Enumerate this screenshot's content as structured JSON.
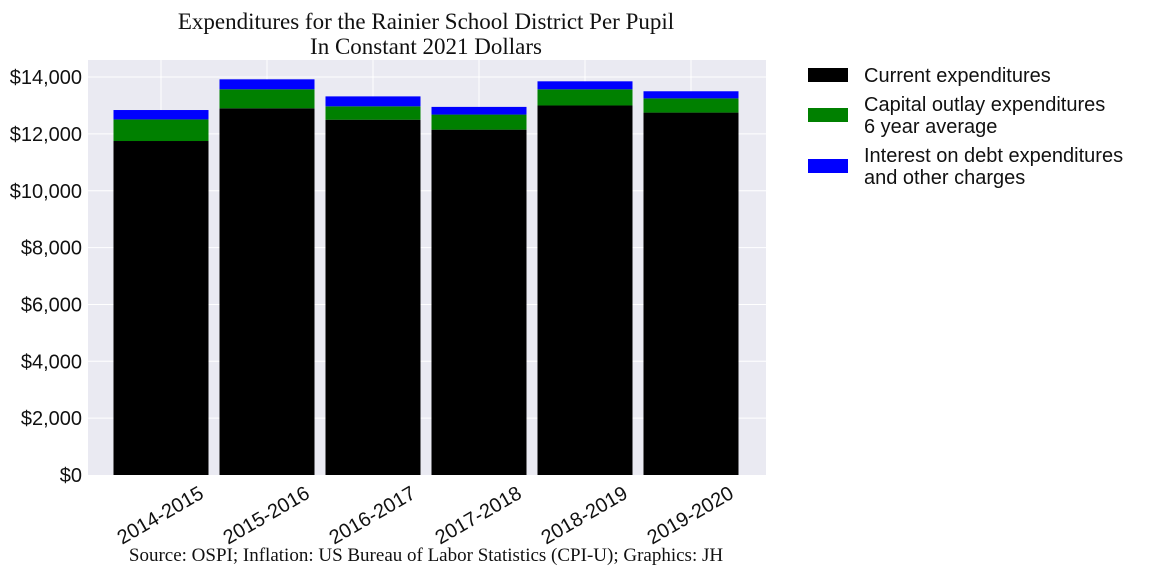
{
  "chart_data": {
    "type": "bar",
    "stacked": true,
    "title_line1": "Expenditures for the Rainier School District Per Pupil",
    "title_line2": "In Constant 2021 Dollars",
    "categories": [
      "2014-2015",
      "2015-2016",
      "2016-2017",
      "2017-2018",
      "2018-2019",
      "2019-2020"
    ],
    "series": [
      {
        "name": "Current expenditures",
        "color": "#000000",
        "values": [
          11750,
          12900,
          12500,
          12150,
          13000,
          12750
        ]
      },
      {
        "name": "Capital outlay expenditures\n6 year average",
        "color": "#008000",
        "values": [
          760,
          670,
          470,
          530,
          570,
          500
        ]
      },
      {
        "name": "Interest on debt expenditures\nand other charges",
        "color": "#0000ff",
        "values": [
          330,
          350,
          350,
          270,
          280,
          250
        ]
      }
    ],
    "ylim": [
      0,
      14600
    ],
    "yticks": [
      0,
      2000,
      4000,
      6000,
      8000,
      10000,
      12000,
      14000
    ],
    "ytick_labels": [
      "$0",
      "$2,000",
      "$4,000",
      "$6,000",
      "$8,000",
      "$10,000",
      "$12,000",
      "$14,000"
    ],
    "grid": true,
    "legend_placement": "outside-top-right",
    "source_note": "Source: OSPI; Inflation: US Bureau of Labor Statistics (CPI-U); Graphics: JH"
  }
}
